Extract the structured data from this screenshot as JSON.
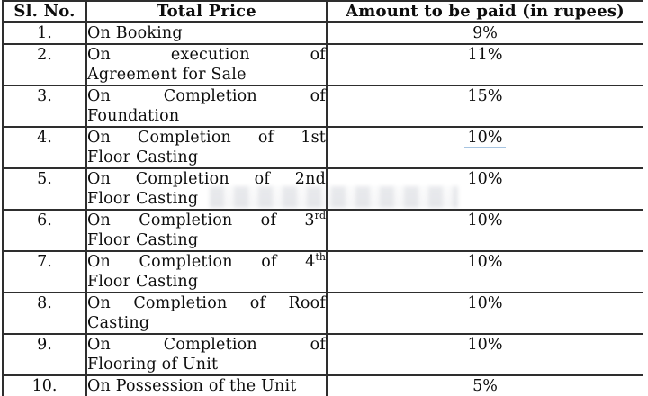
{
  "table": {
    "headers": [
      "Sl. No.",
      "Total Price",
      "Amount to be paid (in rupees)"
    ],
    "rows": [
      {
        "no": "1.",
        "desc": [
          [
            "On Booking"
          ]
        ],
        "amount": "9%"
      },
      {
        "no": "2.",
        "desc": [
          [
            "On execution of"
          ],
          [
            "Agreement for Sale"
          ]
        ],
        "amount": "11%"
      },
      {
        "no": "3.",
        "desc": [
          [
            "On Completion of"
          ],
          [
            "Foundation"
          ]
        ],
        "amount": "15%"
      },
      {
        "no": "4.",
        "desc": [
          [
            "On Completion of 1st"
          ],
          [
            "Floor Casting"
          ]
        ],
        "amount": "10%",
        "amount_underlined": true
      },
      {
        "no": "5.",
        "desc": [
          [
            "On Completion of 2nd"
          ],
          [
            "Floor Casting"
          ]
        ],
        "amount": "10%"
      },
      {
        "no": "6.",
        "desc": [
          [
            "On Completion of 3",
            {
              "sup": "rd"
            }
          ],
          [
            "Floor Casting"
          ]
        ],
        "amount": "10%"
      },
      {
        "no": "7.",
        "desc": [
          [
            "On Completion of 4",
            {
              "sup": "th"
            }
          ],
          [
            "Floor Casting"
          ]
        ],
        "amount": "10%"
      },
      {
        "no": "8.",
        "desc": [
          [
            "On Completion of Roof"
          ],
          [
            "Casting"
          ]
        ],
        "amount": "10%"
      },
      {
        "no": "9.",
        "desc": [
          [
            "On Completion of"
          ],
          [
            "Flooring of Unit"
          ]
        ],
        "amount": "10%"
      },
      {
        "no": "10.",
        "desc": [
          [
            "On Possession of the Unit"
          ]
        ],
        "amount": "5%"
      }
    ]
  },
  "colors": {
    "border": "#2e2e2e",
    "text": "#0d0d0d",
    "amount_underline": "#a6c4e1"
  }
}
